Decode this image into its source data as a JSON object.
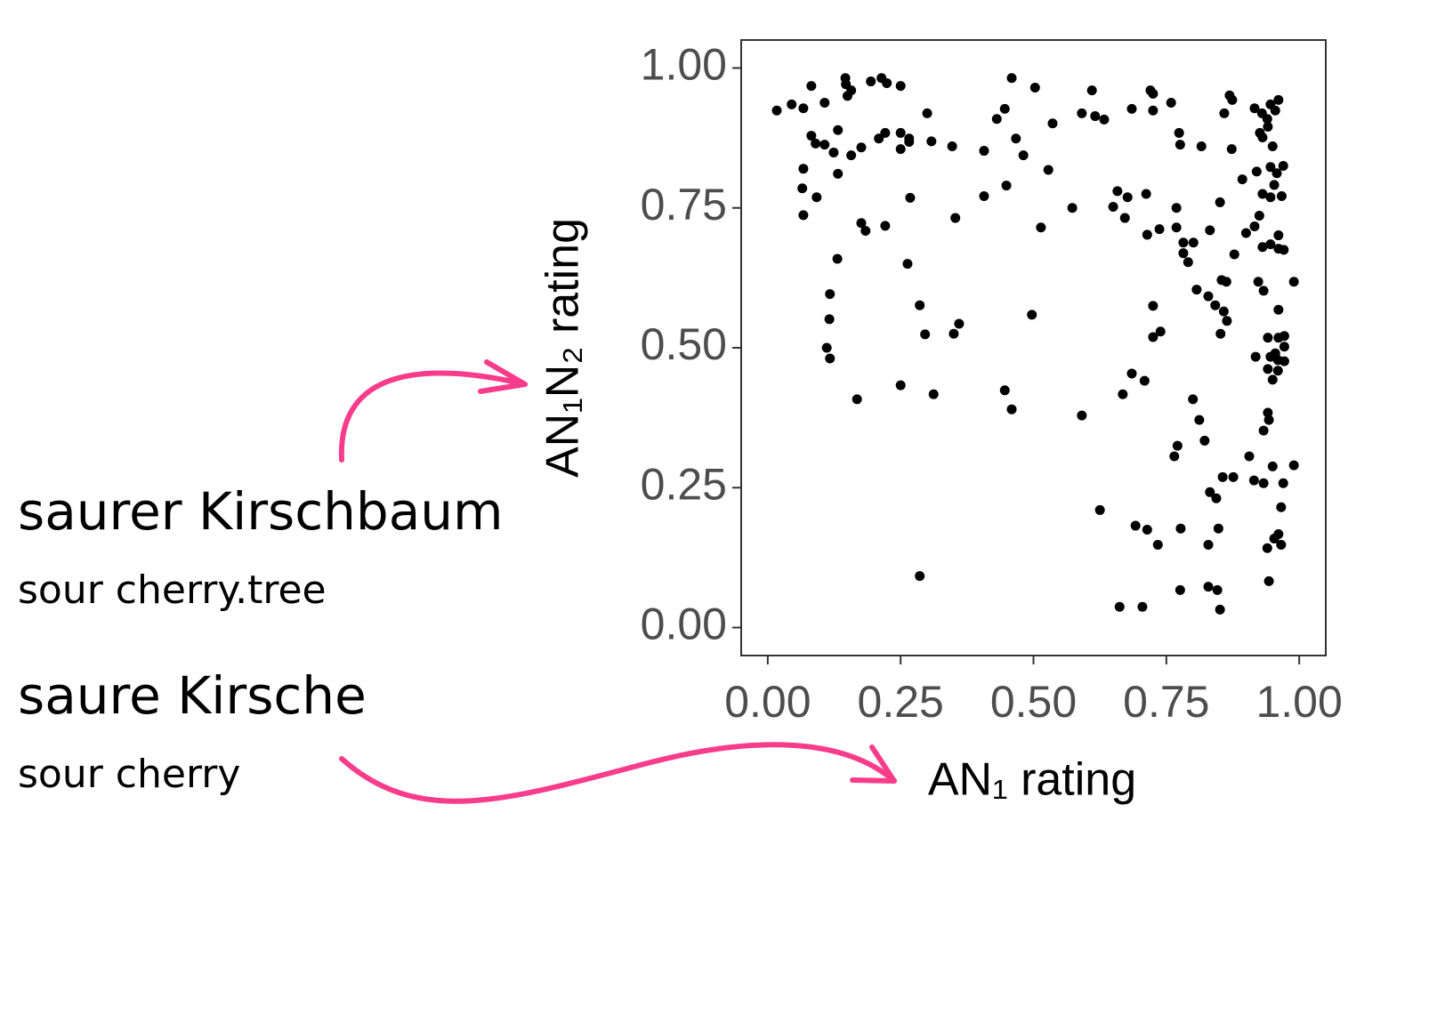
{
  "chart_data": {
    "type": "scatter",
    "x_label": "AN₁ rating",
    "y_label": "AN₁N₂ rating",
    "xlim": [
      -0.05,
      1.05
    ],
    "ylim": [
      -0.05,
      1.05
    ],
    "xticks": [
      {
        "value": 0,
        "label": "0.00"
      },
      {
        "value": 0.25,
        "label": "0.25"
      },
      {
        "value": 0.5,
        "label": "0.50"
      },
      {
        "value": 0.75,
        "label": "0.75"
      },
      {
        "value": 1,
        "label": "1.00"
      }
    ],
    "yticks": [
      {
        "value": 0,
        "label": "0.00"
      },
      {
        "value": 0.25,
        "label": "0.25"
      },
      {
        "value": 0.5,
        "label": "0.50"
      },
      {
        "value": 0.75,
        "label": "0.75"
      },
      {
        "value": 1,
        "label": "1.00"
      }
    ],
    "color": "#000000",
    "annotations": [
      "saurer Kirschbaum",
      "sour cherry.tree",
      "saure Kirsche",
      "sour cherry"
    ],
    "x": [
      0.017,
      0.045,
      0.067,
      0.082,
      0.107,
      0.146,
      0.147,
      0.157,
      0.15,
      0.194,
      0.214,
      0.224,
      0.25,
      0.3,
      0.459,
      0.503,
      0.446,
      0.431,
      0.536,
      0.61,
      0.591,
      0.616,
      0.633,
      0.685,
      0.72,
      0.725,
      0.725,
      0.759,
      0.774,
      0.776,
      0.816,
      0.869,
      0.874,
      0.859,
      0.873,
      0.916,
      0.93,
      0.94,
      0.946,
      0.955,
      0.961,
      0.941,
      0.926,
      0.95,
      0.931,
      0.946,
      0.92,
      0.97,
      0.958,
      0.953,
      0.931,
      0.946,
      0.967,
      0.893,
      0.925,
      0.916,
      0.9,
      0.961,
      0.931,
      0.946,
      0.961,
      0.971,
      0.99,
      0.923,
      0.933,
      0.961,
      0.941,
      0.961,
      0.972,
      0.972,
      0.918,
      0.946,
      0.955,
      0.96,
      0.972,
      0.941,
      0.96,
      0.95,
      0.941,
      0.943,
      0.933,
      0.99,
      0.95,
      0.933,
      0.97,
      0.966,
      0.961,
      0.953,
      0.966,
      0.94,
      0.943,
      0.906,
      0.915,
      0.067,
      0.065,
      0.067,
      0.092,
      0.082,
      0.09,
      0.107,
      0.124,
      0.132,
      0.132,
      0.157,
      0.176,
      0.209,
      0.221,
      0.25,
      0.266,
      0.25,
      0.266,
      0.308,
      0.347,
      0.407,
      0.467,
      0.481,
      0.528,
      0.407,
      0.449,
      0.268,
      0.176,
      0.184,
      0.221,
      0.353,
      0.514,
      0.573,
      0.131,
      0.263,
      0.117,
      0.116,
      0.111,
      0.117,
      0.168,
      0.286,
      0.296,
      0.36,
      0.35,
      0.25,
      0.312,
      0.446,
      0.459,
      0.497,
      0.591,
      0.286,
      0.658,
      0.677,
      0.65,
      0.672,
      0.712,
      0.737,
      0.714,
      0.769,
      0.769,
      0.782,
      0.801,
      0.782,
      0.791,
      0.832,
      0.851,
      0.878,
      0.807,
      0.829,
      0.842,
      0.854,
      0.863,
      0.858,
      0.864,
      0.852,
      0.725,
      0.739,
      0.725,
      0.685,
      0.709,
      0.668,
      0.8,
      0.812,
      0.822,
      0.771,
      0.765,
      0.856,
      0.876,
      0.832,
      0.844,
      0.625,
      0.692,
      0.714,
      0.777,
      0.848,
      0.734,
      0.829,
      0.776,
      0.829,
      0.846,
      0.662,
      0.705,
      0.851
    ],
    "y": [
      0.924,
      0.935,
      0.928,
      0.968,
      0.938,
      0.982,
      0.971,
      0.96,
      0.95,
      0.976,
      0.982,
      0.973,
      0.968,
      0.919,
      0.982,
      0.965,
      0.927,
      0.909,
      0.901,
      0.96,
      0.919,
      0.914,
      0.908,
      0.927,
      0.96,
      0.954,
      0.924,
      0.938,
      0.884,
      0.863,
      0.86,
      0.951,
      0.943,
      0.919,
      0.855,
      0.928,
      0.919,
      0.909,
      0.935,
      0.924,
      0.943,
      0.895,
      0.884,
      0.86,
      0.876,
      0.823,
      0.815,
      0.825,
      0.812,
      0.791,
      0.775,
      0.769,
      0.771,
      0.801,
      0.736,
      0.717,
      0.705,
      0.701,
      0.68,
      0.685,
      0.677,
      0.675,
      0.618,
      0.618,
      0.602,
      0.568,
      0.518,
      0.518,
      0.521,
      0.502,
      0.484,
      0.484,
      0.49,
      0.478,
      0.476,
      0.462,
      0.459,
      0.443,
      0.384,
      0.371,
      0.352,
      0.29,
      0.288,
      0.258,
      0.258,
      0.215,
      0.167,
      0.159,
      0.148,
      0.142,
      0.083,
      0.306,
      0.263,
      0.82,
      0.785,
      0.737,
      0.769,
      0.879,
      0.865,
      0.863,
      0.849,
      0.889,
      0.811,
      0.844,
      0.858,
      0.874,
      0.884,
      0.884,
      0.874,
      0.855,
      0.868,
      0.869,
      0.86,
      0.852,
      0.874,
      0.844,
      0.818,
      0.771,
      0.79,
      0.768,
      0.723,
      0.709,
      0.718,
      0.732,
      0.715,
      0.75,
      0.659,
      0.65,
      0.596,
      0.551,
      0.5,
      0.481,
      0.408,
      0.576,
      0.524,
      0.543,
      0.525,
      0.433,
      0.417,
      0.424,
      0.39,
      0.559,
      0.379,
      0.092,
      0.78,
      0.769,
      0.752,
      0.732,
      0.775,
      0.712,
      0.702,
      0.75,
      0.715,
      0.688,
      0.688,
      0.669,
      0.653,
      0.71,
      0.76,
      0.667,
      0.604,
      0.592,
      0.576,
      0.621,
      0.618,
      0.565,
      0.548,
      0.525,
      0.575,
      0.529,
      0.519,
      0.454,
      0.441,
      0.417,
      0.408,
      0.371,
      0.334,
      0.325,
      0.306,
      0.269,
      0.269,
      0.242,
      0.231,
      0.21,
      0.182,
      0.175,
      0.177,
      0.177,
      0.148,
      0.148,
      0.067,
      0.073,
      0.067,
      0.037,
      0.037,
      0.032
    ]
  }
}
